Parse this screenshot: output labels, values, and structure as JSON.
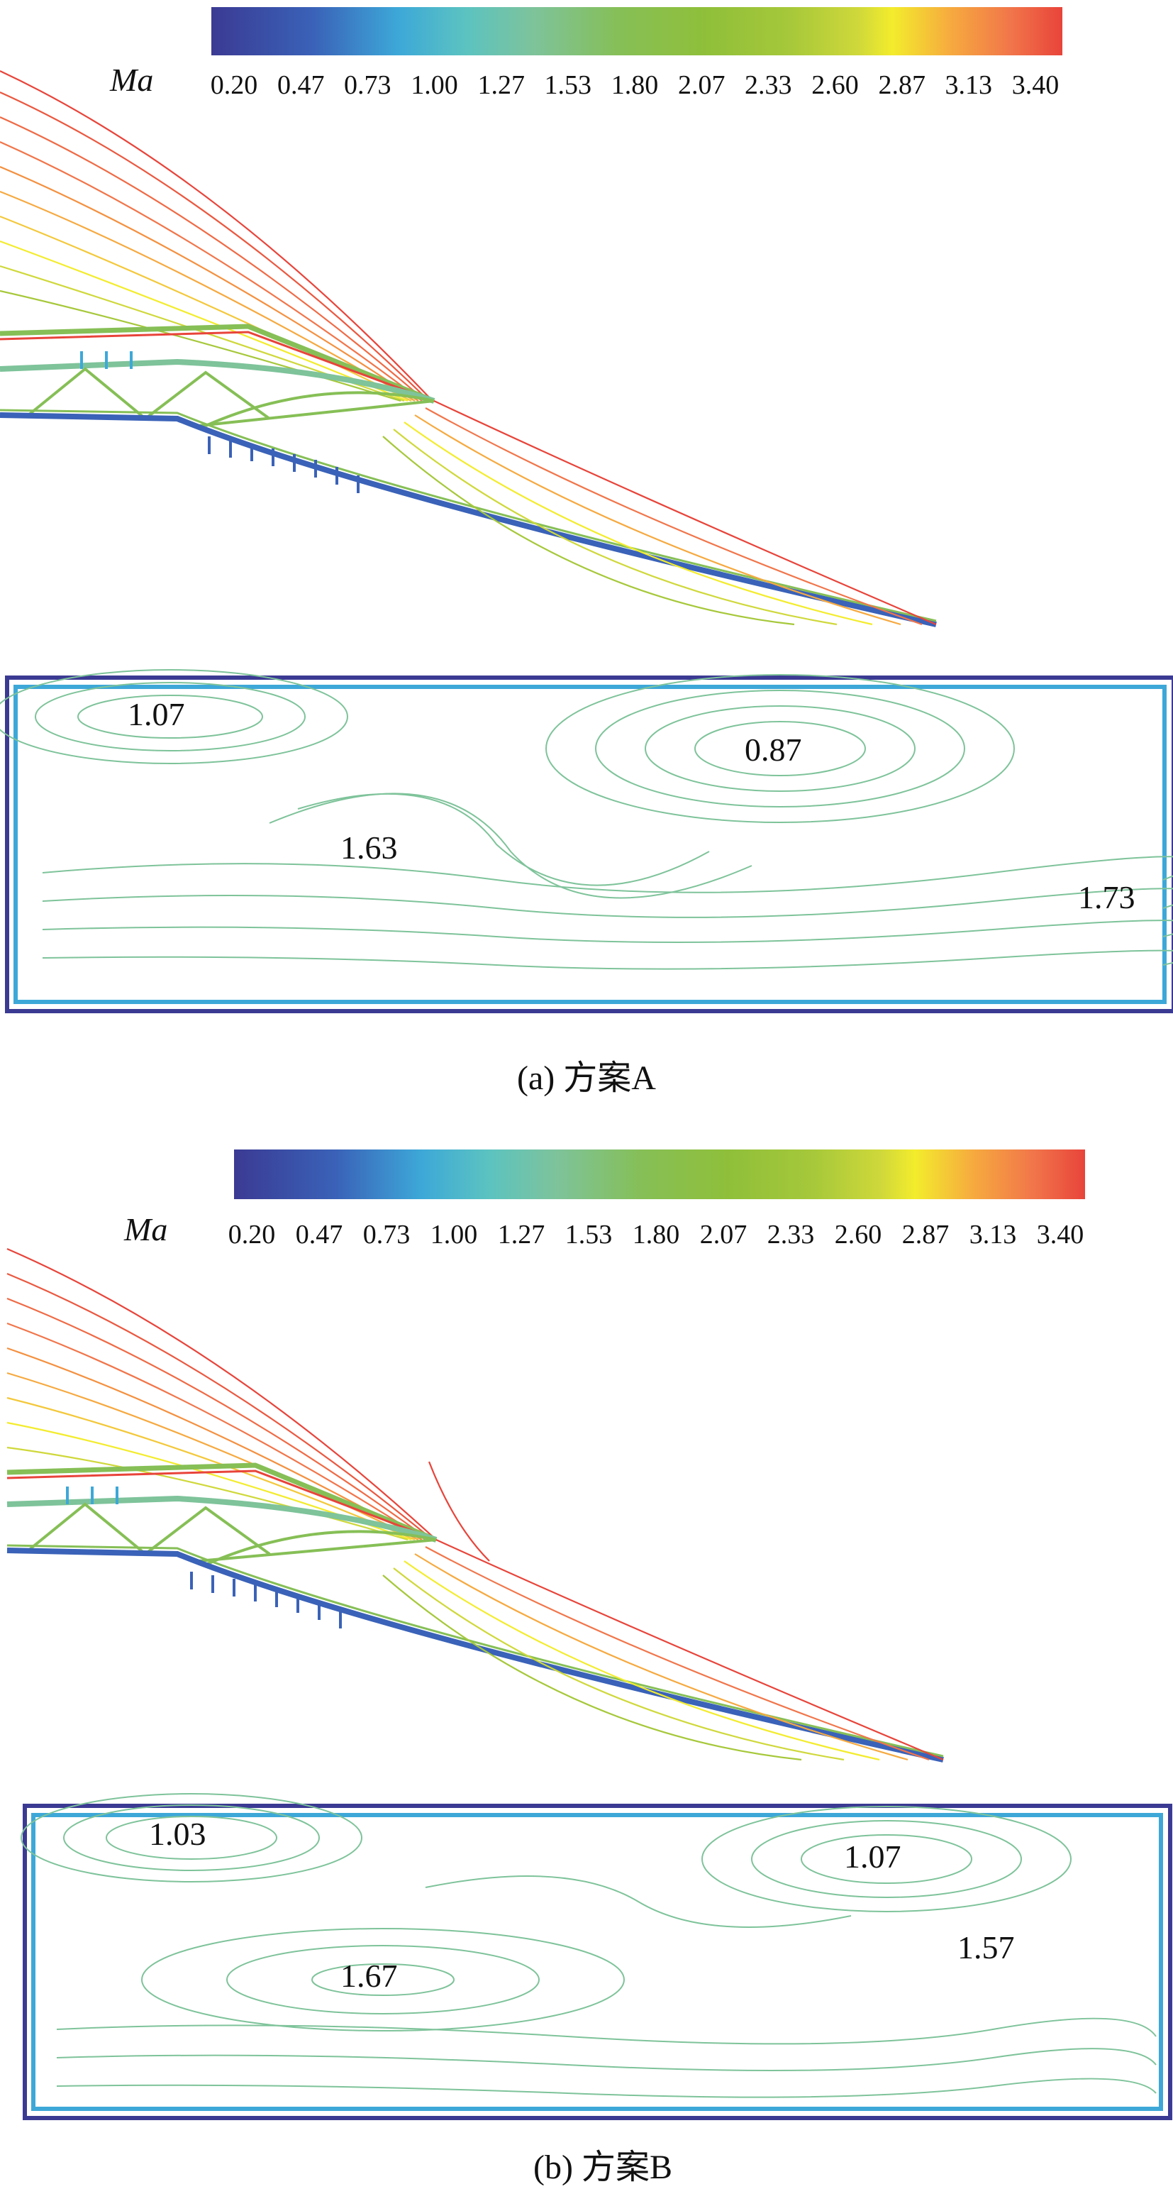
{
  "colorbar": {
    "variable": "Ma",
    "ticks": [
      "0.20",
      "0.47",
      "0.73",
      "1.00",
      "1.27",
      "1.53",
      "1.80",
      "2.07",
      "2.33",
      "2.60",
      "2.87",
      "3.13",
      "3.40"
    ],
    "colors": [
      "#3b3a93",
      "#3a62b8",
      "#3da8d8",
      "#5cc3c0",
      "#7ec39a",
      "#86bf56",
      "#8fbf3a",
      "#a6c83a",
      "#cfd83a",
      "#f3ec2c",
      "#f6a93f",
      "#f1754a",
      "#e8443a"
    ]
  },
  "panels": [
    {
      "id": "a",
      "caption": "(a) 方案A",
      "labels": [
        "1.07",
        "0.87",
        "1.63",
        "1.73"
      ]
    },
    {
      "id": "b",
      "caption": "(b) 方案B",
      "labels": [
        "1.03",
        "1.07",
        "1.67",
        "1.57"
      ]
    }
  ]
}
